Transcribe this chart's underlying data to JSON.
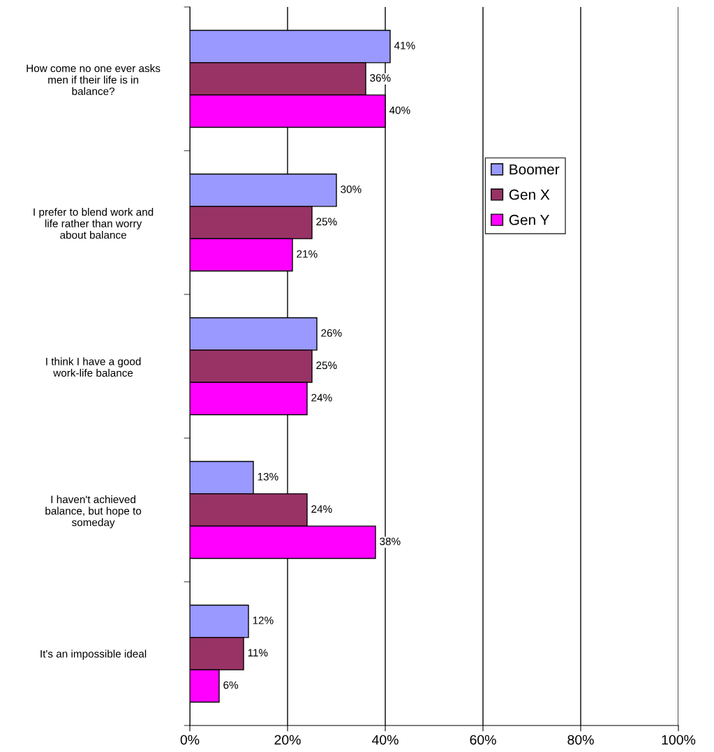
{
  "chart_data": {
    "type": "bar",
    "orientation": "horizontal",
    "categories": [
      "How come no one ever asks men if their life is in balance?",
      "I prefer to blend work and life rather than worry about balance",
      "I think I have a good work-life balance",
      "I haven't achieved balance, but hope to someday",
      "It's an impossible ideal"
    ],
    "series": [
      {
        "name": "Boomer",
        "color": "#9999ff",
        "values": [
          41,
          30,
          26,
          13,
          12
        ],
        "value_labels": [
          "41%",
          "30%",
          "26%",
          "13%",
          "12%"
        ]
      },
      {
        "name": "Gen X",
        "color": "#993366",
        "values": [
          36,
          25,
          25,
          24,
          11
        ],
        "value_labels": [
          "36%",
          "25%",
          "25%",
          "24%",
          "11%"
        ]
      },
      {
        "name": "Gen Y",
        "color": "#ff00ff",
        "values": [
          40,
          21,
          24,
          38,
          6
        ],
        "value_labels": [
          "40%",
          "21%",
          "24%",
          "38%",
          "6%"
        ]
      }
    ],
    "xlim": [
      0,
      100
    ],
    "xticks": [
      {
        "value": 0,
        "label": "0%"
      },
      {
        "value": 20,
        "label": "20%"
      },
      {
        "value": 40,
        "label": "40%"
      },
      {
        "value": 60,
        "label": "60%"
      },
      {
        "value": 80,
        "label": "80%"
      },
      {
        "value": 100,
        "label": "100%"
      }
    ],
    "grid": "x",
    "legend": "right"
  }
}
